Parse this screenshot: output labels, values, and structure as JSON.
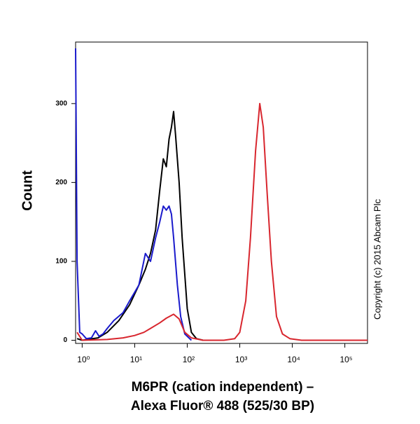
{
  "chart_data": {
    "type": "line",
    "xlabel": [
      "M6PR (cation independent) –",
      "Alexa Fluor® 488  (525/30 BP)"
    ],
    "ylabel": "Count",
    "annotation": "Copyright (c) 2015 Abcam Plc",
    "xscale": "log",
    "xlim": [
      0.75,
      270000
    ],
    "ylim": [
      -4,
      378
    ],
    "xticks": [
      {
        "value": 1,
        "label": "10⁰"
      },
      {
        "value": 10,
        "label": "10¹"
      },
      {
        "value": 100,
        "label": "10²"
      },
      {
        "value": 1000,
        "label": "10³"
      },
      {
        "value": 10000,
        "label": "10⁴"
      },
      {
        "value": 100000,
        "label": "10⁵"
      }
    ],
    "yticks": [
      0,
      100,
      200,
      300
    ],
    "series": [
      {
        "color": "#000000",
        "x": [
          0.8,
          1,
          2,
          3,
          5,
          8,
          12,
          16,
          20,
          25,
          30,
          35,
          40,
          45,
          50,
          55,
          60,
          70,
          80,
          100,
          120,
          150,
          200
        ],
        "values": [
          2,
          0,
          3,
          10,
          25,
          45,
          70,
          90,
          110,
          140,
          190,
          230,
          220,
          255,
          270,
          290,
          260,
          200,
          130,
          40,
          10,
          2,
          0
        ]
      },
      {
        "color": "#1a1acc",
        "x": [
          0.75,
          0.8,
          0.9,
          1,
          1.2,
          1.5,
          1.8,
          2.1,
          2.5,
          3,
          4,
          6,
          8,
          12,
          16,
          20,
          25,
          30,
          35,
          40,
          45,
          50,
          55,
          65,
          75,
          90,
          120
        ],
        "values": [
          370,
          100,
          10,
          8,
          2,
          3,
          12,
          5,
          8,
          15,
          25,
          35,
          50,
          70,
          110,
          100,
          130,
          150,
          170,
          165,
          170,
          160,
          130,
          70,
          30,
          8,
          0
        ]
      },
      {
        "color": "#d8262e",
        "x": [
          0.8,
          1,
          3,
          6,
          10,
          15,
          20,
          30,
          40,
          55,
          70,
          90,
          120,
          200,
          500,
          800,
          1000,
          1300,
          1600,
          2000,
          2400,
          2800,
          3300,
          4000,
          5000,
          6500,
          9000,
          15000,
          270000
        ],
        "values": [
          10,
          0,
          1,
          3,
          6,
          10,
          15,
          22,
          28,
          33,
          27,
          10,
          3,
          0,
          0,
          2,
          10,
          50,
          130,
          240,
          300,
          270,
          190,
          100,
          30,
          8,
          2,
          0,
          0
        ]
      }
    ]
  }
}
